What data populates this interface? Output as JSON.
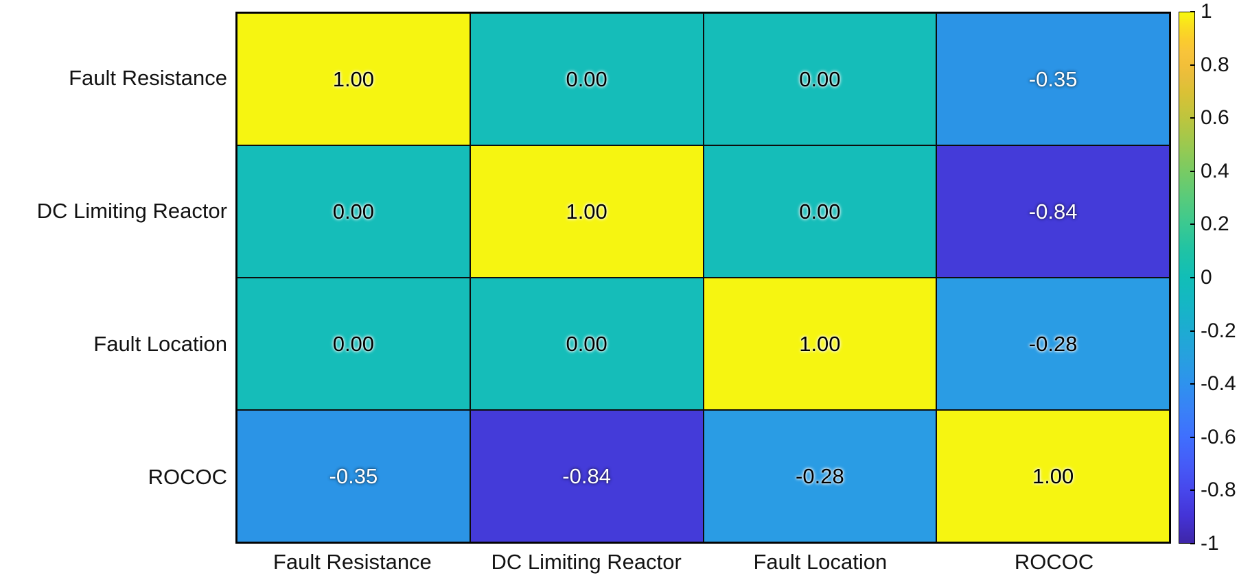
{
  "figure": {
    "background": "#ffffff",
    "axes_border_color": "#000000"
  },
  "chart_data": {
    "type": "heatmap",
    "title": "",
    "colormap": "parula",
    "rows": [
      "Fault Resistance",
      "DC Limiting Reactor",
      "Fault Location",
      "ROCOC"
    ],
    "columns": [
      "Fault Resistance",
      "DC Limiting Reactor",
      "Fault Location",
      "ROCOC"
    ],
    "matrix": [
      [
        1.0,
        0.0,
        0.0,
        -0.35
      ],
      [
        0.0,
        1.0,
        0.0,
        -0.84
      ],
      [
        0.0,
        0.0,
        1.0,
        -0.28
      ],
      [
        -0.35,
        -0.84,
        -0.28,
        1.0
      ]
    ],
    "cell_labels": [
      [
        "1.00",
        "0.00",
        "0.00",
        "-0.35"
      ],
      [
        "0.00",
        "1.00",
        "0.00",
        "-0.84"
      ],
      [
        "0.00",
        "0.00",
        "1.00",
        "-0.28"
      ],
      [
        "-0.35",
        "-0.84",
        "-0.28",
        "1.00"
      ]
    ],
    "cell_colors": [
      [
        "#F6F511",
        "#15BDB9",
        "#15BDB9",
        "#2B94E6"
      ],
      [
        "#15BDB9",
        "#F6F511",
        "#15BDB9",
        "#443BD9"
      ],
      [
        "#15BDB9",
        "#15BDB9",
        "#F6F511",
        "#2A9CE4"
      ],
      [
        "#2B94E6",
        "#443BD9",
        "#2A9CE4",
        "#F6F511"
      ]
    ],
    "cell_text_colors": [
      [
        "black",
        "black",
        "black",
        "white"
      ],
      [
        "black",
        "black",
        "black",
        "white"
      ],
      [
        "black",
        "black",
        "black",
        "black"
      ],
      [
        "white",
        "white",
        "black",
        "black"
      ]
    ],
    "value_range": [
      -1,
      1
    ],
    "grid_lines": true,
    "legend_position": "none",
    "colorbar": {
      "position": "right",
      "min": -1,
      "max": 1,
      "tick_labels": [
        "1",
        "0.8",
        "0.6",
        "0.4",
        "0.2",
        "0",
        "-0.2",
        "-0.4",
        "-0.6",
        "-0.8",
        "-1"
      ],
      "tick_values": [
        1,
        0.8,
        0.6,
        0.4,
        0.2,
        0,
        -0.2,
        -0.4,
        -0.6,
        -0.8,
        -1
      ],
      "gradient": [
        {
          "v": -1.0,
          "color": "#3E26A8"
        },
        {
          "v": -0.9,
          "color": "#4433D6"
        },
        {
          "v": -0.8,
          "color": "#4747EC"
        },
        {
          "v": -0.7,
          "color": "#455CF8"
        },
        {
          "v": -0.6,
          "color": "#3F6FFE"
        },
        {
          "v": -0.5,
          "color": "#3981F7"
        },
        {
          "v": -0.4,
          "color": "#2E92EE"
        },
        {
          "v": -0.3,
          "color": "#27A0DF"
        },
        {
          "v": -0.2,
          "color": "#1DABD2"
        },
        {
          "v": -0.1,
          "color": "#15B6C5"
        },
        {
          "v": 0.0,
          "color": "#11BEB7"
        },
        {
          "v": 0.1,
          "color": "#1FC3A5"
        },
        {
          "v": 0.2,
          "color": "#3AC991"
        },
        {
          "v": 0.3,
          "color": "#58CB7B"
        },
        {
          "v": 0.4,
          "color": "#78CB64"
        },
        {
          "v": 0.5,
          "color": "#9BC94F"
        },
        {
          "v": 0.6,
          "color": "#BDC53E"
        },
        {
          "v": 0.7,
          "color": "#DBC135"
        },
        {
          "v": 0.75,
          "color": "#E7BE3B"
        },
        {
          "v": 0.8,
          "color": "#F2BF39"
        },
        {
          "v": 0.85,
          "color": "#F8C43A"
        },
        {
          "v": 0.9,
          "color": "#FBCD2C"
        },
        {
          "v": 0.95,
          "color": "#FADF1F"
        },
        {
          "v": 1.0,
          "color": "#F8F80E"
        }
      ]
    }
  }
}
